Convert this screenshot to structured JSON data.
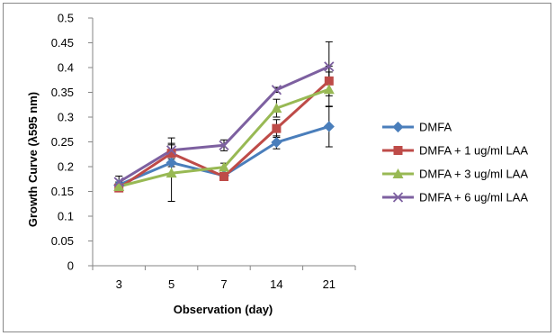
{
  "chart_data": {
    "type": "line",
    "xlabel": "Observation (day)",
    "ylabel": "Growth Curve (λ595 nm)",
    "categories": [
      "3",
      "5",
      "7",
      "14",
      "21"
    ],
    "ylim": [
      0,
      0.5
    ],
    "ytick_step": 0.05,
    "yticks": [
      "0",
      "0.05",
      "0.1",
      "0.15",
      "0.2",
      "0.25",
      "0.3",
      "0.35",
      "0.4",
      "0.45",
      "0.5"
    ],
    "grid": false,
    "legend_position": "right",
    "series": [
      {
        "name": "DMFA",
        "color": "#4a7ebb",
        "marker": "diamond",
        "values": [
          0.163,
          0.208,
          0.182,
          0.249,
          0.281
        ],
        "errors": [
          0.006,
          0.008,
          0.01,
          0.013,
          0.041
        ]
      },
      {
        "name": "DMFA + 1 ug/ml LAA",
        "color": "#be4b48",
        "marker": "square",
        "values": [
          0.157,
          0.227,
          0.18,
          0.277,
          0.373
        ],
        "errors": [
          0.006,
          0.02,
          0.008,
          0.018,
          0.03
        ]
      },
      {
        "name": "DMFA + 3 ug/ml LAA",
        "color": "#98b954",
        "marker": "triangle",
        "values": [
          0.16,
          0.187,
          0.199,
          0.318,
          0.356
        ],
        "errors": [
          0.006,
          0.057,
          0.008,
          0.018,
          0.035
        ]
      },
      {
        "name": "DMFA + 6 ug/ml LAA",
        "color": "#7d60a0",
        "marker": "x",
        "values": [
          0.169,
          0.233,
          0.243,
          0.355,
          0.402
        ],
        "errors": [
          0.012,
          0.025,
          0.011,
          0.005,
          0.05
        ]
      }
    ]
  }
}
